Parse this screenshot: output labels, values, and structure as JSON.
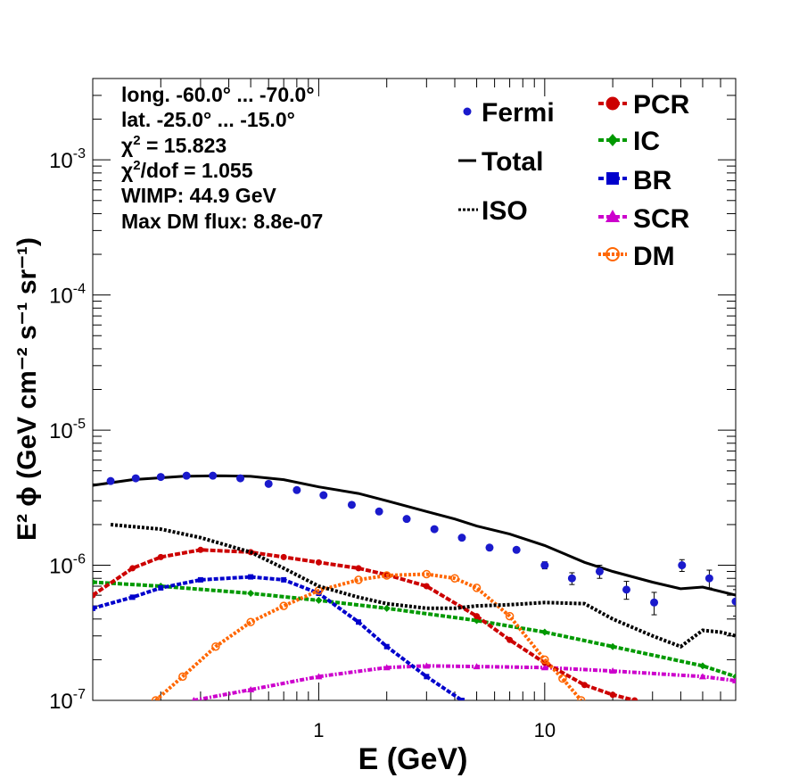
{
  "chart_data": {
    "type": "scatter",
    "x_scale": "log",
    "y_scale": "log",
    "xlim": [
      0.1,
      70
    ],
    "ylim": [
      1e-07,
      0.004
    ],
    "xlabel": "E (GeV)",
    "ylabel": "E² ϕ (GeV cm⁻² s⁻¹ sr⁻¹)",
    "x_ticks": [
      {
        "value": 1,
        "label": "1"
      },
      {
        "value": 10,
        "label": "10"
      }
    ],
    "y_ticks": [
      {
        "value": 1e-07,
        "mant": "10",
        "exp": "-7"
      },
      {
        "value": 1e-06,
        "mant": "10",
        "exp": "-6"
      },
      {
        "value": 1e-05,
        "mant": "10",
        "exp": "-5"
      },
      {
        "value": 0.0001,
        "mant": "10",
        "exp": "-4"
      },
      {
        "value": 0.001,
        "mant": "10",
        "exp": "-3"
      }
    ],
    "info": {
      "long": "long. -60.0° ... -70.0°",
      "lat": "lat. -25.0° ... -15.0°",
      "chi2_sym": "χ",
      "chi2_sup": "2",
      "chi2_val": " = 15.823",
      "chi2dof_val": "/dof = 1.055",
      "wimp": "WIMP: 44.9 GeV",
      "maxdm": "Max DM flux: 8.8e-07"
    },
    "legend_left": [
      {
        "key": "fermi",
        "label": "Fermi"
      },
      {
        "key": "total",
        "label": "Total"
      },
      {
        "key": "iso",
        "label": "ISO"
      }
    ],
    "legend_right": [
      {
        "key": "pcr",
        "label": "PCR"
      },
      {
        "key": "ic",
        "label": "IC"
      },
      {
        "key": "br",
        "label": "BR"
      },
      {
        "key": "scr",
        "label": "SCR"
      },
      {
        "key": "dm",
        "label": "DM"
      }
    ],
    "colors": {
      "fermi": "#1a1acc",
      "total": "#000000",
      "iso": "#000000",
      "pcr": "#cc0000",
      "ic": "#009900",
      "br": "#0000cc",
      "scr": "#cc00cc",
      "dm": "#ff6600"
    },
    "fermi": {
      "x": [
        0.12,
        0.155,
        0.2,
        0.26,
        0.34,
        0.45,
        0.6,
        0.8,
        1.05,
        1.4,
        1.85,
        2.45,
        3.25,
        4.3,
        5.7,
        7.5,
        10,
        13.2,
        17.5,
        23,
        30.5,
        40.5,
        53.5,
        70
      ],
      "y": [
        4.2e-06,
        4.4e-06,
        4.5e-06,
        4.6e-06,
        4.6e-06,
        4.4e-06,
        4e-06,
        3.6e-06,
        3.3e-06,
        2.8e-06,
        2.5e-06,
        2.2e-06,
        1.85e-06,
        1.6e-06,
        1.35e-06,
        1.3e-06,
        1e-06,
        8e-07,
        9e-07,
        6.6e-07,
        5.3e-07,
        1e-06,
        8e-07,
        5.4e-07
      ],
      "err_lo": [
        0,
        0,
        0,
        0,
        0,
        0,
        0,
        0,
        0,
        0,
        0,
        0,
        0,
        0,
        0,
        0,
        6e-08,
        8e-08,
        1e-07,
        1e-07,
        1e-07,
        1e-07,
        1.2e-07,
        1.2e-07
      ],
      "err_hi": [
        0,
        0,
        0,
        0,
        0,
        0,
        0,
        0,
        0,
        0,
        0,
        0,
        0,
        0,
        0,
        0,
        6e-08,
        8e-08,
        1e-07,
        1e-07,
        1e-07,
        1e-07,
        1.2e-07,
        1.2e-07
      ]
    },
    "total": {
      "x": [
        0.1,
        0.15,
        0.25,
        0.35,
        0.5,
        0.7,
        1,
        1.5,
        2,
        3,
        4,
        5,
        7,
        10,
        15,
        20,
        30,
        40,
        50,
        70
      ],
      "y": [
        3.9e-06,
        4.3e-06,
        4.55e-06,
        4.6e-06,
        4.55e-06,
        4.3e-06,
        3.8e-06,
        3.4e-06,
        3e-06,
        2.5e-06,
        2.2e-06,
        1.95e-06,
        1.7e-06,
        1.4e-06,
        1.05e-06,
        9e-07,
        7.5e-07,
        6.7e-07,
        6.9e-07,
        6e-07
      ]
    },
    "iso": {
      "x": [
        0.12,
        0.2,
        0.3,
        0.5,
        0.7,
        1,
        1.5,
        2,
        3,
        4,
        5,
        7,
        10,
        15,
        20,
        30,
        40,
        45,
        50,
        60,
        70
      ],
      "y": [
        2e-06,
        1.85e-06,
        1.6e-06,
        1.25e-06,
        9.5e-07,
        7e-07,
        5.8e-07,
        5.2e-07,
        4.8e-07,
        4.8e-07,
        5e-07,
        5.1e-07,
        5.3e-07,
        5.2e-07,
        4e-07,
        3e-07,
        2.5e-07,
        2.9e-07,
        3.3e-07,
        3.2e-07,
        3e-07
      ]
    },
    "pcr": {
      "x": [
        0.1,
        0.15,
        0.2,
        0.3,
        0.5,
        0.7,
        1,
        1.5,
        2,
        3,
        5,
        7,
        10,
        15,
        20,
        25
      ],
      "y": [
        6e-07,
        9.5e-07,
        1.15e-06,
        1.3e-06,
        1.25e-06,
        1.15e-06,
        1.05e-06,
        9.5e-07,
        8.5e-07,
        7e-07,
        4.2e-07,
        2.8e-07,
        1.9e-07,
        1.3e-07,
        1.1e-07,
        1e-07
      ]
    },
    "ic": {
      "x": [
        0.1,
        0.2,
        0.5,
        1,
        2,
        5,
        10,
        20,
        50,
        70
      ],
      "y": [
        7.5e-07,
        7e-07,
        6.2e-07,
        5.5e-07,
        4.8e-07,
        3.9e-07,
        3.2e-07,
        2.5e-07,
        1.8e-07,
        1.5e-07
      ]
    },
    "br": {
      "x": [
        0.1,
        0.15,
        0.2,
        0.3,
        0.5,
        0.7,
        1,
        1.5,
        2,
        3,
        4.3
      ],
      "y": [
        4.8e-07,
        5.8e-07,
        6.8e-07,
        7.8e-07,
        8.2e-07,
        7.8e-07,
        6.2e-07,
        3.8e-07,
        2.5e-07,
        1.5e-07,
        1e-07
      ]
    },
    "scr": {
      "x": [
        0.28,
        0.5,
        1,
        2,
        3,
        5,
        10,
        20,
        50,
        70
      ],
      "y": [
        1e-07,
        1.2e-07,
        1.5e-07,
        1.75e-07,
        1.8e-07,
        1.78e-07,
        1.75e-07,
        1.65e-07,
        1.5e-07,
        1.4e-07
      ]
    },
    "dm": {
      "x": [
        0.19,
        0.25,
        0.35,
        0.5,
        0.7,
        1,
        1.5,
        2,
        3,
        4,
        5,
        7,
        10,
        12,
        14.5
      ],
      "y": [
        1e-07,
        1.5e-07,
        2.5e-07,
        3.8e-07,
        5e-07,
        6.5e-07,
        7.8e-07,
        8.4e-07,
        8.6e-07,
        8e-07,
        6.8e-07,
        4.2e-07,
        2e-07,
        1.45e-07,
        1e-07
      ]
    }
  }
}
